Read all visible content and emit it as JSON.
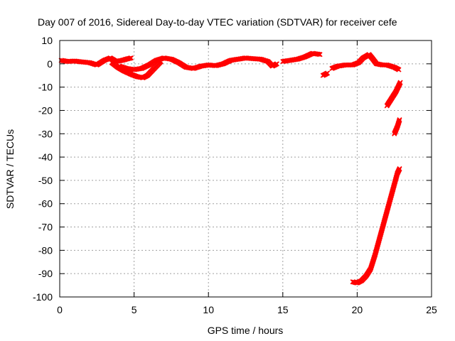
{
  "chart_data": {
    "type": "scatter",
    "title": "Day 007 of 2016, Sidereal Day-to-day VTEC variation (SDTVAR) for receiver cefe",
    "xlabel": "GPS time / hours",
    "ylabel": "SDTVAR / TECUs",
    "xlim": [
      0,
      25
    ],
    "ylim": [
      -100,
      10
    ],
    "xticks": [
      0,
      5,
      10,
      15,
      20,
      25
    ],
    "yticks": [
      10,
      0,
      -10,
      -20,
      -30,
      -40,
      -50,
      -60,
      -70,
      -80,
      -90,
      -100
    ],
    "grid": true,
    "marker": "x",
    "point_color": "#ff0000",
    "series": [
      {
        "segments": [
          [
            [
              0.1,
              1.5
            ],
            [
              0.5,
              1.0
            ],
            [
              1.0,
              1.2
            ],
            [
              1.5,
              0.8
            ],
            [
              2.0,
              0.5
            ],
            [
              2.5,
              -0.5
            ],
            [
              3.0,
              1.5
            ],
            [
              3.4,
              2.5
            ],
            [
              3.8,
              1.0
            ],
            [
              4.2,
              1.5
            ],
            [
              4.6,
              2.2
            ],
            [
              4.8,
              2.5
            ]
          ],
          [
            [
              3.5,
              0.5
            ],
            [
              3.9,
              -1.5
            ],
            [
              4.3,
              -3.0
            ],
            [
              4.8,
              -4.5
            ],
            [
              5.2,
              -5.5
            ],
            [
              5.6,
              -6.0
            ],
            [
              5.9,
              -5.0
            ],
            [
              6.2,
              -3.0
            ],
            [
              6.5,
              -1.0
            ],
            [
              6.8,
              1.0
            ]
          ],
          [
            [
              4.0,
              -1.0
            ],
            [
              4.5,
              -2.0
            ],
            [
              5.0,
              -2.5
            ],
            [
              5.5,
              -2.0
            ],
            [
              6.0,
              -0.5
            ],
            [
              6.5,
              1.5
            ],
            [
              7.0,
              2.5
            ],
            [
              7.5,
              2.0
            ],
            [
              8.0,
              0.5
            ],
            [
              8.5,
              -1.5
            ],
            [
              9.0,
              -2.0
            ],
            [
              9.5,
              -1.0
            ],
            [
              10.0,
              -0.5
            ],
            [
              10.5,
              -0.8
            ],
            [
              11.0,
              0
            ],
            [
              11.5,
              1.5
            ],
            [
              12.0,
              2.0
            ],
            [
              12.5,
              2.5
            ],
            [
              13.0,
              2.2
            ],
            [
              13.5,
              2.0
            ],
            [
              14.0,
              1.0
            ],
            [
              14.3,
              -1.0
            ],
            [
              14.6,
              0.0
            ]
          ],
          [
            [
              15.0,
              1.0
            ],
            [
              15.5,
              1.5
            ],
            [
              16.0,
              2.0
            ],
            [
              16.5,
              3.0
            ],
            [
              17.0,
              4.5
            ],
            [
              17.5,
              4.0
            ]
          ],
          [
            [
              17.7,
              -5.0
            ],
            [
              18.0,
              -4.0
            ]
          ],
          [
            [
              18.3,
              -2.0
            ],
            [
              18.7,
              -1.0
            ],
            [
              19.2,
              -0.5
            ],
            [
              19.7,
              -0.5
            ],
            [
              20.1,
              0.5
            ],
            [
              20.4,
              2.5
            ],
            [
              20.8,
              4.0
            ],
            [
              21.0,
              2.5
            ],
            [
              21.3,
              0.0
            ],
            [
              21.7,
              -0.5
            ],
            [
              22.0,
              -0.5
            ],
            [
              22.5,
              -1.5
            ],
            [
              22.8,
              -2.5
            ]
          ],
          [
            [
              22.0,
              -18.0
            ],
            [
              22.3,
              -15.0
            ],
            [
              22.6,
              -12.0
            ],
            [
              22.9,
              -8.0
            ]
          ],
          [
            [
              22.5,
              -30.0
            ],
            [
              22.7,
              -27.0
            ],
            [
              22.85,
              -24.0
            ]
          ],
          [
            [
              19.7,
              -93.5
            ],
            [
              20.0,
              -94.0
            ],
            [
              20.3,
              -93.0
            ],
            [
              20.6,
              -91.0
            ],
            [
              20.9,
              -88.0
            ],
            [
              21.2,
              -82.0
            ],
            [
              21.5,
              -75.0
            ],
            [
              21.8,
              -68.0
            ],
            [
              22.1,
              -61.0
            ],
            [
              22.4,
              -54.0
            ],
            [
              22.7,
              -47.0
            ],
            [
              22.85,
              -45.0
            ]
          ]
        ]
      }
    ]
  }
}
